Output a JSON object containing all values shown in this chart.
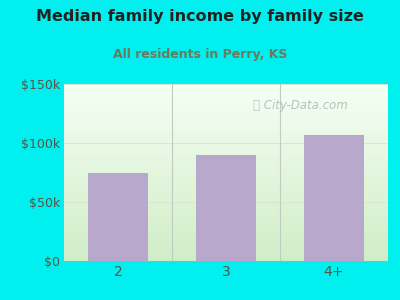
{
  "title": "Median family income by family size",
  "subtitle": "All residents in Perry, KS",
  "categories": [
    "2",
    "3",
    "4+"
  ],
  "values": [
    75000,
    90000,
    107000
  ],
  "bar_color": "#b8a8cc",
  "bg_color": "#00efef",
  "plot_bg_top": "#f0faf0",
  "plot_bg_bottom": "#d8efd0",
  "ylim": [
    0,
    150000
  ],
  "yticks": [
    0,
    50000,
    100000,
    150000
  ],
  "ytick_labels": [
    "$0",
    "$50k",
    "$100k",
    "$150k"
  ],
  "title_color": "#222222",
  "subtitle_color": "#6a7a5a",
  "tick_color": "#555544",
  "watermark": "City-Data.com",
  "watermark_color": "#b0b8b0",
  "divider_color": "#c0ccc0",
  "grid_color": "#d8e8d0"
}
